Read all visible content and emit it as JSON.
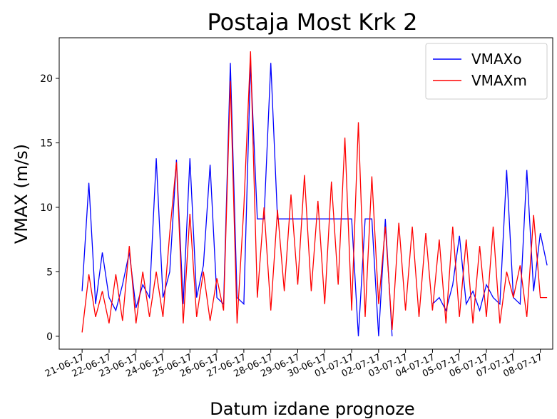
{
  "chart_data": {
    "type": "line",
    "title": "Postaja Most Krk 2",
    "x_label": "Datum izdane prognoze",
    "y_label": "VMAX (m/s)",
    "x": [
      0,
      0.25,
      0.5,
      0.75,
      1,
      1.25,
      1.5,
      1.75,
      2,
      2.25,
      2.5,
      2.75,
      3,
      3.25,
      3.5,
      3.75,
      4,
      4.25,
      4.5,
      4.75,
      5,
      5.25,
      5.5,
      5.75,
      6,
      6.25,
      6.5,
      6.75,
      7,
      7.25,
      7.5,
      7.75,
      8,
      8.25,
      8.5,
      8.75,
      9,
      9.25,
      9.5,
      9.75,
      10,
      10.25,
      10.5,
      10.75,
      11,
      11.25,
      11.5,
      11.75,
      12,
      12.25,
      12.5,
      12.75,
      13,
      13.25,
      13.5,
      13.75,
      14,
      14.25,
      14.5,
      14.75,
      15,
      15.25,
      15.5,
      15.75,
      16,
      16.25,
      16.5,
      16.75,
      17,
      17.25
    ],
    "series": [
      {
        "name": "VMAXo",
        "color": "#0000ff",
        "values": [
          3.5,
          11.9,
          2.5,
          6.5,
          3.0,
          2.0,
          4.0,
          6.5,
          2.2,
          4.0,
          3.0,
          13.8,
          3.0,
          5.0,
          13.7,
          2.5,
          13.8,
          3.0,
          5.5,
          13.3,
          3.0,
          2.5,
          21.2,
          3.0,
          2.5,
          21.2,
          9.1,
          9.1,
          21.2,
          9.1,
          9.1,
          9.1,
          9.1,
          9.1,
          9.1,
          9.1,
          9.1,
          9.1,
          9.1,
          9.1,
          9.1,
          0,
          9.1,
          9.1,
          0,
          9.1,
          0,
          null,
          null,
          null,
          null,
          null,
          2.5,
          3.0,
          2.0,
          4.0,
          7.8,
          2.5,
          3.5,
          2.0,
          4.0,
          3.0,
          2.5,
          12.9,
          3.0,
          2.5,
          12.9,
          3.5,
          8.0,
          5.5
        ]
      },
      {
        "name": "VMAXm",
        "color": "#ff0000",
        "values": [
          0.3,
          4.8,
          1.5,
          3.5,
          1.0,
          4.8,
          1.2,
          7.0,
          1.0,
          5.0,
          1.5,
          5.0,
          1.5,
          8.0,
          13.5,
          1.0,
          9.5,
          1.5,
          5.0,
          1.2,
          4.5,
          2.0,
          19.8,
          1.0,
          10.0,
          22.1,
          3.0,
          10.0,
          2.0,
          9.8,
          3.5,
          11.0,
          4.0,
          12.5,
          3.5,
          10.5,
          2.5,
          12.0,
          4.0,
          15.4,
          2.0,
          16.6,
          1.5,
          12.4,
          2.5,
          8.5,
          0.5,
          8.8,
          2.0,
          8.5,
          1.5,
          8.0,
          2.0,
          7.5,
          1.0,
          8.5,
          1.5,
          7.5,
          1.0,
          7.0,
          1.5,
          8.5,
          1.0,
          5.0,
          3.0,
          5.5,
          1.5,
          9.4,
          3.0,
          3.0
        ]
      }
    ],
    "xlim": [
      -0.85,
      17.46
    ],
    "xticks": [
      {
        "value": 0,
        "label": "21-06-17"
      },
      {
        "value": 1,
        "label": "22-06-17"
      },
      {
        "value": 2,
        "label": "23-06-17"
      },
      {
        "value": 3,
        "label": "24-06-17"
      },
      {
        "value": 4,
        "label": "25-06-17"
      },
      {
        "value": 5,
        "label": "26-06-17"
      },
      {
        "value": 6,
        "label": "27-06-17"
      },
      {
        "value": 7,
        "label": "28-06-17"
      },
      {
        "value": 8,
        "label": "29-06-17"
      },
      {
        "value": 9,
        "label": "30-06-17"
      },
      {
        "value": 10,
        "label": "01-07-17"
      },
      {
        "value": 11,
        "label": "02-07-17"
      },
      {
        "value": 12,
        "label": "03-07-17"
      },
      {
        "value": 13,
        "label": "04-07-17"
      },
      {
        "value": 14,
        "label": "05-07-17"
      },
      {
        "value": 15,
        "label": "06-07-17"
      },
      {
        "value": 16,
        "label": "07-07-17"
      },
      {
        "value": 17,
        "label": "08-07-17"
      }
    ],
    "ylim": [
      -1.0,
      23.15
    ],
    "yticks": [
      0,
      5,
      10,
      15,
      20
    ],
    "grid": false,
    "legend": "upper right"
  }
}
